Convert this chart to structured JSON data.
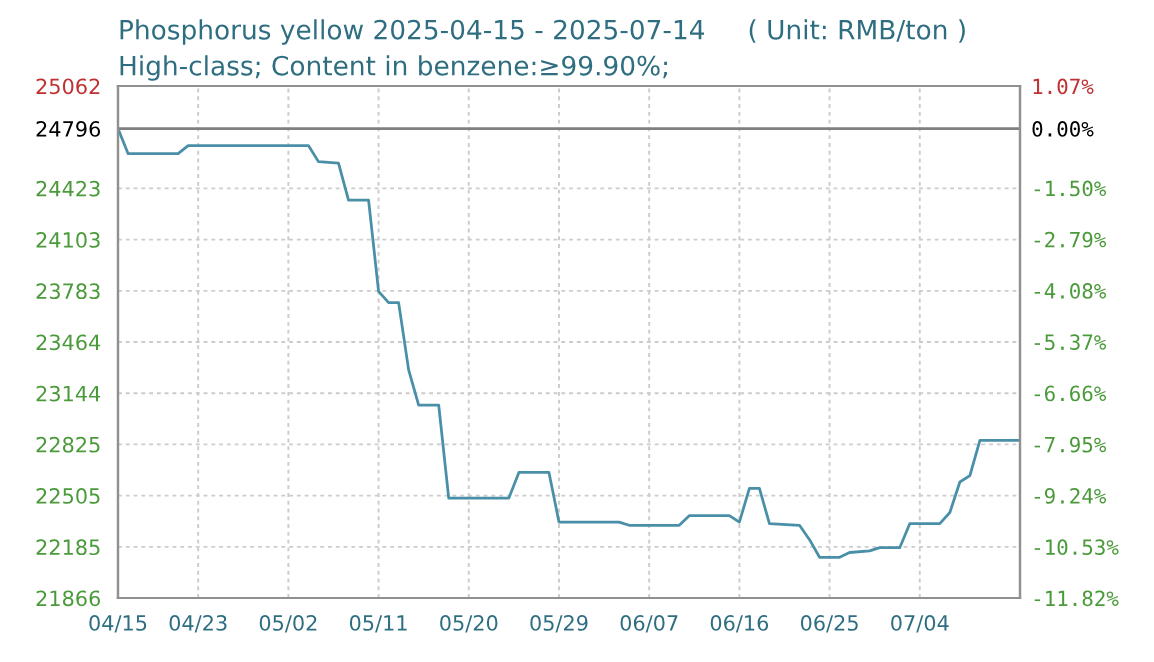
{
  "chart_data": {
    "type": "line",
    "title": "Phosphorus yellow 2025-04-15 - 2025-07-14     ( Unit: RMB/ton )",
    "subtitle": "High-class; Content in benzene:≥99.90%;",
    "x": [
      "2025-04-15",
      "2025-04-16",
      "2025-04-21",
      "2025-04-22",
      "2025-05-04",
      "2025-05-05",
      "2025-05-07",
      "2025-05-08",
      "2025-05-10",
      "2025-05-11",
      "2025-05-12",
      "2025-05-13",
      "2025-05-14",
      "2025-05-15",
      "2025-05-17",
      "2025-05-18",
      "2025-05-24",
      "2025-05-25",
      "2025-05-28",
      "2025-05-29",
      "2025-06-04",
      "2025-06-05",
      "2025-06-10",
      "2025-06-11",
      "2025-06-15",
      "2025-06-16",
      "2025-06-17",
      "2025-06-18",
      "2025-06-19",
      "2025-06-22",
      "2025-06-23",
      "2025-06-24",
      "2025-06-26",
      "2025-06-27",
      "2025-06-29",
      "2025-06-30",
      "2025-07-02",
      "2025-07-03",
      "2025-07-06",
      "2025-07-07",
      "2025-07-08",
      "2025-07-09",
      "2025-07-10",
      "2025-07-14"
    ],
    "series": [
      {
        "color": "#4a8fa8",
        "values": [
          24796,
          24640,
          24640,
          24690,
          24690,
          24590,
          24580,
          24350,
          24350,
          23780,
          23710,
          23710,
          23290,
          23070,
          23070,
          22490,
          22490,
          22650,
          22650,
          22340,
          22340,
          22320,
          22320,
          22380,
          22380,
          22340,
          22550,
          22550,
          22330,
          22320,
          22230,
          22120,
          22120,
          22150,
          22160,
          22180,
          22180,
          22330,
          22330,
          22400,
          22590,
          22630,
          22850,
          22850
        ]
      }
    ],
    "xlim": [
      "2025-04-15",
      "2025-07-14"
    ],
    "xticks": [
      {
        "value": "2025-04-15",
        "label": "04/15"
      },
      {
        "value": "2025-04-23",
        "label": "04/23"
      },
      {
        "value": "2025-05-02",
        "label": "05/02"
      },
      {
        "value": "2025-05-11",
        "label": "05/11"
      },
      {
        "value": "2025-05-20",
        "label": "05/20"
      },
      {
        "value": "2025-05-29",
        "label": "05/29"
      },
      {
        "value": "2025-06-07",
        "label": "06/07"
      },
      {
        "value": "2025-06-16",
        "label": "06/16"
      },
      {
        "value": "2025-06-25",
        "label": "06/25"
      },
      {
        "value": "2025-07-04",
        "label": "07/04"
      }
    ],
    "ylim": [
      21866,
      25062
    ],
    "yticks": [
      21866,
      22185,
      22505,
      22825,
      23144,
      23464,
      23783,
      24103,
      24423,
      24796,
      25062
    ],
    "y2lim": [
      -11.82,
      1.07
    ],
    "y2ticks": [
      {
        "value": -11.82,
        "label": "-11.82%"
      },
      {
        "value": -10.53,
        "label": "-10.53%"
      },
      {
        "value": -9.24,
        "label": "-9.24%"
      },
      {
        "value": -7.95,
        "label": "-7.95%"
      },
      {
        "value": -6.66,
        "label": "-6.66%"
      },
      {
        "value": -5.37,
        "label": "-5.37%"
      },
      {
        "value": -4.08,
        "label": "-4.08%"
      },
      {
        "value": -2.79,
        "label": "-2.79%"
      },
      {
        "value": -1.5,
        "label": "-1.50%"
      },
      {
        "value": 0,
        "label": "0.00%"
      },
      {
        "value": 1.07,
        "label": "1.07%"
      }
    ],
    "ref_lines": [
      {
        "axis": "y",
        "value": 24796,
        "color": "#808080"
      }
    ],
    "grid": true,
    "legend": false
  }
}
